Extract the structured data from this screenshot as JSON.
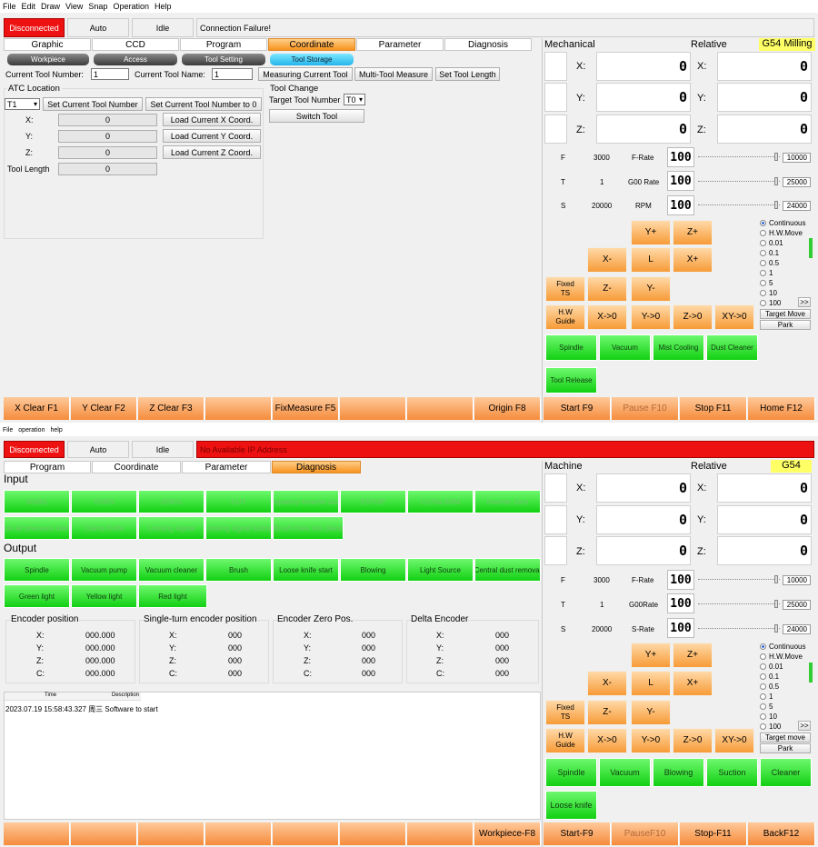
{
  "top": {
    "menu": [
      "File",
      "Edit",
      "Draw",
      "View",
      "Snap",
      "Operation",
      "Help"
    ],
    "status": {
      "connection": "Disconnected",
      "mode": "Auto",
      "state": "Idle",
      "message": "Connection Failure!"
    },
    "main_tabs": [
      "Graphic",
      "CCD",
      "Program",
      "Coordinate",
      "Parameter",
      "Diagnosis"
    ],
    "sub_tabs": [
      "Workpiece",
      "Access",
      "Tool Setting",
      "Tool Storage"
    ],
    "tool": {
      "current_number_label": "Current Tool Number:",
      "current_number": "1",
      "current_name_label": "Current Tool Name:",
      "current_name": "1",
      "measuring": "Measuring Current Tool",
      "multi": "Multi-Tool Measure",
      "set_length": "Set Tool Length"
    },
    "atc": {
      "title": "ATC Location",
      "slot": "T1",
      "set_current": "Set Current Tool Number",
      "set_zero": "Set Current Tool Number to 0",
      "x_label": "X:",
      "x": "0",
      "y_label": "Y:",
      "y": "0",
      "z_label": "Z:",
      "z": "0",
      "load_x": "Load Current X Coord.",
      "load_y": "Load Current Y Coord.",
      "load_z": "Load Current Z Coord.",
      "len_label": "Tool Length",
      "len": "0"
    },
    "change": {
      "title": "Tool Change",
      "target_label": "Target Tool Number",
      "target": "T0",
      "switch": "Switch Tool"
    },
    "fkeys": [
      "X Clear F1",
      "Y Clear F2",
      "Z Clear F3",
      "",
      "FixMeasure F5",
      "",
      "",
      "Origin F8"
    ]
  },
  "bottom": {
    "menu": [
      "File",
      "operation",
      "help"
    ],
    "status": {
      "connection": "Disconnected",
      "mode": "Auto",
      "state": "Idle",
      "message": "No Available IP Address"
    },
    "main_tabs": [
      "Program",
      "Coordinate",
      "Parameter",
      "Diagnosis"
    ],
    "input_title": "Input",
    "inputs_row1": [
      "XORG",
      "YORG",
      "ZORG",
      "CUT",
      "Frequency Inverter alarm",
      "ESTOP",
      "CUTALARM",
      "Inverter Zero"
    ],
    "inputs_row2": [
      "Low air pressure alarm",
      "Clamp Knife",
      "Loosing signal",
      "Loosing signal button",
      "Brush rises into place"
    ],
    "output_title": "Output",
    "outputs_row1": [
      "Spindle",
      "Vacuum pump",
      "Vacuum cleaner",
      "Brush",
      "Loose knife start",
      "Blowing",
      "Light Source",
      "Central dust removal"
    ],
    "outputs_row2": [
      "Green light",
      "Yellow light",
      "Red light"
    ],
    "encoders": [
      {
        "title": "Encoder position",
        "x": "000.000",
        "y": "000.000",
        "z": "000.000",
        "c": "000.000"
      },
      {
        "title": "Single-turn encoder position",
        "x": "000",
        "y": "000",
        "z": "000",
        "c": "000"
      },
      {
        "title": "Encoder Zero Pos.",
        "x": "000",
        "y": "000",
        "z": "000",
        "c": "000"
      },
      {
        "title": "Delta Encoder",
        "x": "000",
        "y": "000",
        "z": "000",
        "c": "000"
      }
    ],
    "axis_labels": {
      "x": "X:",
      "y": "Y:",
      "z": "Z:",
      "c": "C:"
    },
    "log": {
      "col_time": "Time",
      "col_desc": "Description",
      "entry": "2023.07.19 15:58:43.327 周三  Software to start"
    },
    "fkeys": [
      "",
      "",
      "",
      "",
      "",
      "",
      "",
      "Workpiece-F8"
    ]
  },
  "right_top": {
    "mech": "Mechanical",
    "rel": "Relative",
    "wcs": "G54 Milling",
    "axes": [
      "X:",
      "Y:",
      "Z:"
    ],
    "mech_vals": [
      "0",
      "0",
      "0"
    ],
    "rel_vals": [
      "0",
      "0",
      "0"
    ],
    "f_label": "F",
    "f": "3000",
    "f_rate_label": "F-Rate",
    "f_rate": "100",
    "f_max": "10000",
    "t_label": "T",
    "t": "1",
    "g00_label": "G00 Rate",
    "g00": "100",
    "g00_max": "25000",
    "s_label": "S",
    "s": "20000",
    "rpm_label": "RPM",
    "rpm": "100",
    "s_max": "24000",
    "jog": {
      "yp": "Y+",
      "zp": "Z+",
      "xm": "X-",
      "l": "L",
      "xp": "X+",
      "fixed": "Fixed TS",
      "zm": "Z-",
      "ym": "Y-",
      "hw": "H.W Guide",
      "x0": "X->0",
      "y0": "Y->0",
      "z0": "Z->0",
      "xy0": "XY->0"
    },
    "steps": [
      "Continuous",
      "H.W.Move",
      "0.01",
      "0.1",
      "0.5",
      "1",
      "5",
      "10",
      "100"
    ],
    "more": ">>",
    "target": "Target Move",
    "park": "Park",
    "outputs": [
      "Spindle",
      "Vacuum",
      "Mist Cooling",
      "Dust Cleaner"
    ],
    "extra": "Tool Release",
    "fkeys": [
      "Start F9",
      "Pause F10",
      "Stop F11",
      "Home F12"
    ]
  },
  "right_bottom": {
    "mech": "Machine",
    "rel": "Relative",
    "wcs": "G54",
    "axes": [
      "X:",
      "Y:",
      "Z:"
    ],
    "mech_vals": [
      "0",
      "0",
      "0"
    ],
    "rel_vals": [
      "0",
      "0",
      "0"
    ],
    "f_label": "F",
    "f": "3000",
    "f_rate_label": "F-Rate",
    "f_rate": "100",
    "f_max": "10000",
    "t_label": "T",
    "t": "1",
    "g00_label": "G00Rate",
    "g00": "100",
    "g00_max": "25000",
    "s_label": "S",
    "s": "20000",
    "rpm_label": "S-Rate",
    "rpm": "100",
    "s_max": "24000",
    "jog": {
      "yp": "Y+",
      "zp": "Z+",
      "xm": "X-",
      "l": "L",
      "xp": "X+",
      "fixed": "Fixed TS",
      "zm": "Z-",
      "ym": "Y-",
      "hw": "H.W Guide",
      "x0": "X->0",
      "y0": "Y->0",
      "z0": "Z->0",
      "xy0": "XY->0"
    },
    "steps": [
      "Continuous",
      "H.W.Move",
      "0.01",
      "0.1",
      "0.5",
      "1",
      "5",
      "10",
      "100"
    ],
    "more": ">>",
    "target": "Target move",
    "park": "Park",
    "outputs": [
      "Spindle",
      "Vacuum",
      "Blowing",
      "Suction",
      "Cleaner"
    ],
    "extra": "Loose knife",
    "fkeys": [
      "Start-F9",
      "PauseF10",
      "Stop-F11",
      "BackF12"
    ]
  },
  "colors": {
    "orange": "#f79b37",
    "green": "#12d012",
    "red": "#ee1111",
    "cyan": "#22b4ea",
    "yellow": "#ffff66"
  }
}
